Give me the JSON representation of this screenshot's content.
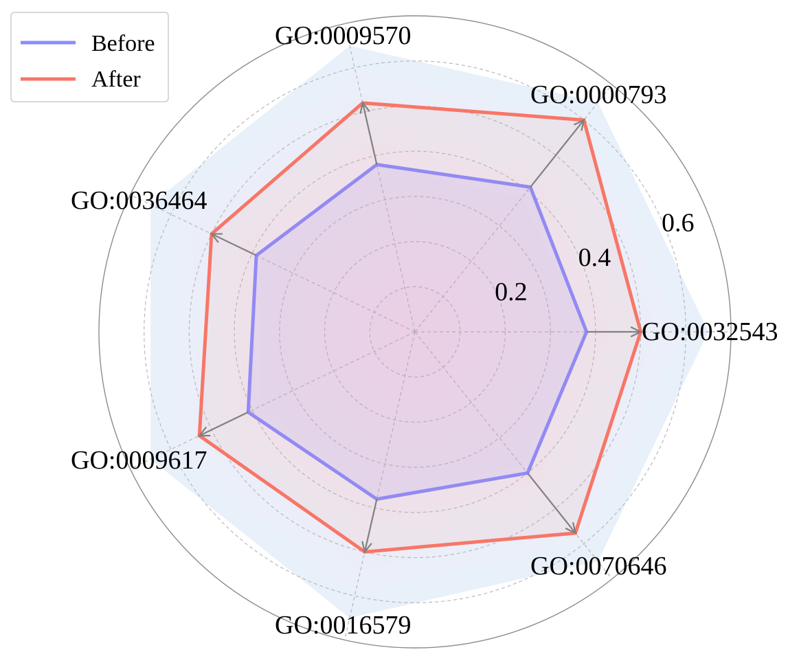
{
  "chart_data": {
    "type": "radar",
    "categories": [
      "GO:0032543",
      "GO:0000793",
      "GO:0009570",
      "GO:0036464",
      "GO:0009617",
      "GO:0016579",
      "GO:0070646"
    ],
    "series": [
      {
        "name": "Before",
        "values": [
          0.38,
          0.41,
          0.38,
          0.39,
          0.41,
          0.38,
          0.4
        ],
        "color": "#8a8cff"
      },
      {
        "name": "After",
        "values": [
          0.5,
          0.6,
          0.52,
          0.5,
          0.53,
          0.5,
          0.57
        ],
        "color": "#f87667"
      }
    ],
    "rlim": [
      0,
      0.7
    ],
    "rticks": [
      0.2,
      0.4,
      0.6
    ],
    "rtick_labels": [
      "0.2",
      "0.4",
      "0.6"
    ],
    "grid": true,
    "legend_position": "top-left",
    "arrows": "Before to After on each axis"
  }
}
